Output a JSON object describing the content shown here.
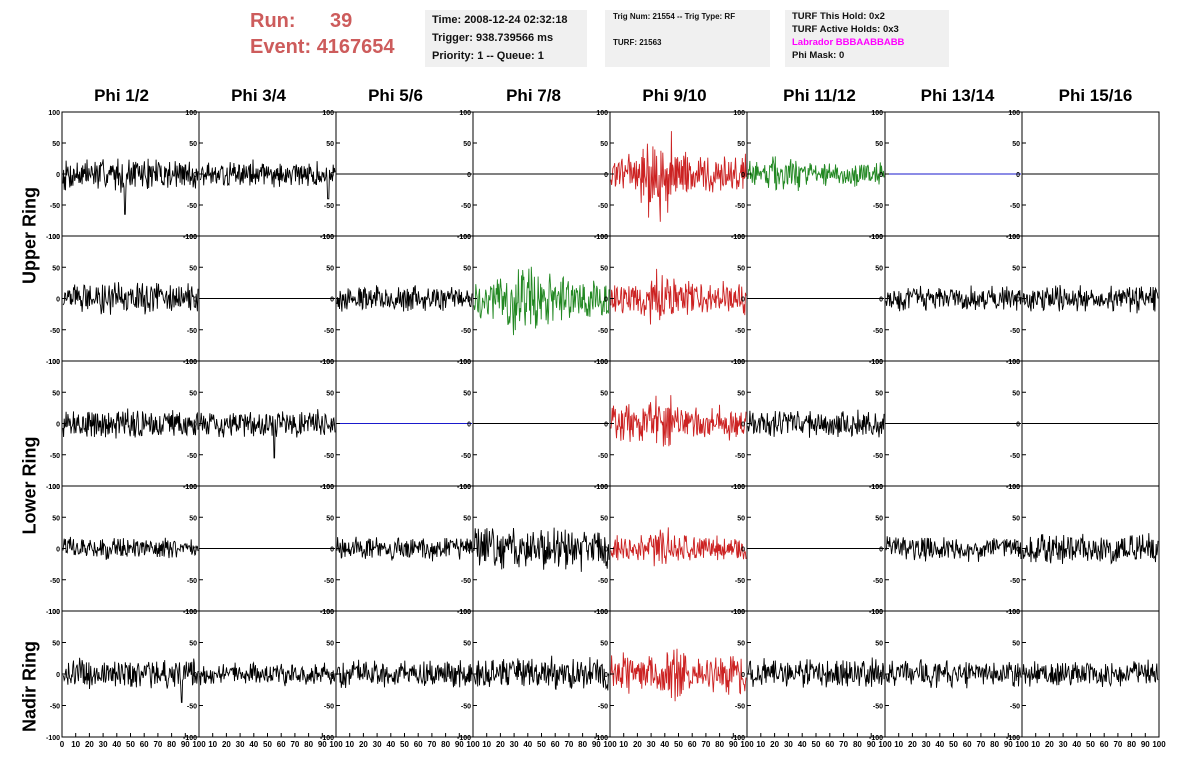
{
  "header": {
    "run_label": "Run:",
    "run_value": "39",
    "event_label": "Event:",
    "event_value": "4167654",
    "time": "Time: 2008-12-24 02:32:18",
    "trigger": "Trigger: 938.739566 ms",
    "priority": "Priority: 1 -- Queue: 1",
    "trig_num": "Trig Num: 21554 -- Trig Type: RF",
    "turf": "TURF: 21563",
    "turf_this_hold": "TURF This Hold: 0x2",
    "turf_active_holds": "TURF Active Holds: 0x3",
    "labrador": "Labrador BBBAABBABB",
    "phi_mask": "Phi Mask: 0"
  },
  "chart_data": {
    "type": "line",
    "columns": [
      "Phi 1/2",
      "Phi 3/4",
      "Phi 5/6",
      "Phi 7/8",
      "Phi 9/10",
      "Phi 11/12",
      "Phi 13/14",
      "Phi 15/16"
    ],
    "ring_labels": [
      "Upper Ring",
      "Lower Ring",
      "Nadir Ring"
    ],
    "ylim": [
      -100,
      100
    ],
    "xlim": [
      0,
      100
    ],
    "y_ticks": [
      "100",
      "50",
      "0",
      "-50",
      "-100"
    ],
    "x_ticks": [
      "0",
      "10",
      "20",
      "30",
      "40",
      "50",
      "60",
      "70",
      "80",
      "90",
      "100"
    ],
    "colors": {
      "black": "#000000",
      "red": "#cc2222",
      "green": "#228822",
      "blue": "#1a1acc"
    },
    "panels": [
      [
        {
          "color": "black",
          "amp": 28,
          "spike": [
            46,
            -65
          ]
        },
        {
          "color": "black",
          "amp": 22,
          "spike": [
            95,
            -40
          ]
        },
        {
          "color": "black",
          "amp": 0
        },
        {
          "color": "black",
          "amp": 0
        },
        {
          "color": "red",
          "amp": 35,
          "burst": [
            22,
            45,
            2.2
          ]
        },
        {
          "color": "green",
          "amp": 20,
          "burst": [
            15,
            40,
            1.5
          ]
        },
        {
          "color": "blue",
          "amp": 0
        },
        {
          "color": "black",
          "amp": 0
        }
      ],
      [
        {
          "color": "black",
          "amp": 25
        },
        {
          "color": "black",
          "amp": 0
        },
        {
          "color": "black",
          "amp": 22
        },
        {
          "color": "green",
          "amp": 38,
          "burst": [
            25,
            55,
            1.6
          ]
        },
        {
          "color": "red",
          "amp": 28,
          "burst": [
            28,
            48,
            1.6
          ]
        },
        {
          "color": "black",
          "amp": 0
        },
        {
          "color": "black",
          "amp": 20
        },
        {
          "color": "black",
          "amp": 22
        }
      ],
      [
        {
          "color": "black",
          "amp": 25
        },
        {
          "color": "black",
          "amp": 22,
          "spike": [
            55,
            -55
          ]
        },
        {
          "color": "blue",
          "amp": 0
        },
        {
          "color": "black",
          "amp": 0
        },
        {
          "color": "red",
          "amp": 30,
          "burst": [
            28,
            45,
            1.6
          ]
        },
        {
          "color": "black",
          "amp": 22
        },
        {
          "color": "black",
          "amp": 0
        },
        {
          "color": "black",
          "amp": 0
        }
      ],
      [
        {
          "color": "black",
          "amp": 18
        },
        {
          "color": "black",
          "amp": 0
        },
        {
          "color": "black",
          "amp": 20
        },
        {
          "color": "black",
          "amp": 35
        },
        {
          "color": "red",
          "amp": 22,
          "burst": [
            30,
            45,
            1.6
          ]
        },
        {
          "color": "black",
          "amp": 0
        },
        {
          "color": "black",
          "amp": 20
        },
        {
          "color": "black",
          "amp": 25
        }
      ],
      [
        {
          "color": "black",
          "amp": 25,
          "spike": [
            88,
            -45
          ]
        },
        {
          "color": "black",
          "amp": 18
        },
        {
          "color": "black",
          "amp": 22
        },
        {
          "color": "black",
          "amp": 28
        },
        {
          "color": "red",
          "amp": 32,
          "burst": [
            35,
            55,
            1.6
          ]
        },
        {
          "color": "black",
          "amp": 25
        },
        {
          "color": "black",
          "amp": 22
        },
        {
          "color": "black",
          "amp": 22
        }
      ]
    ]
  }
}
